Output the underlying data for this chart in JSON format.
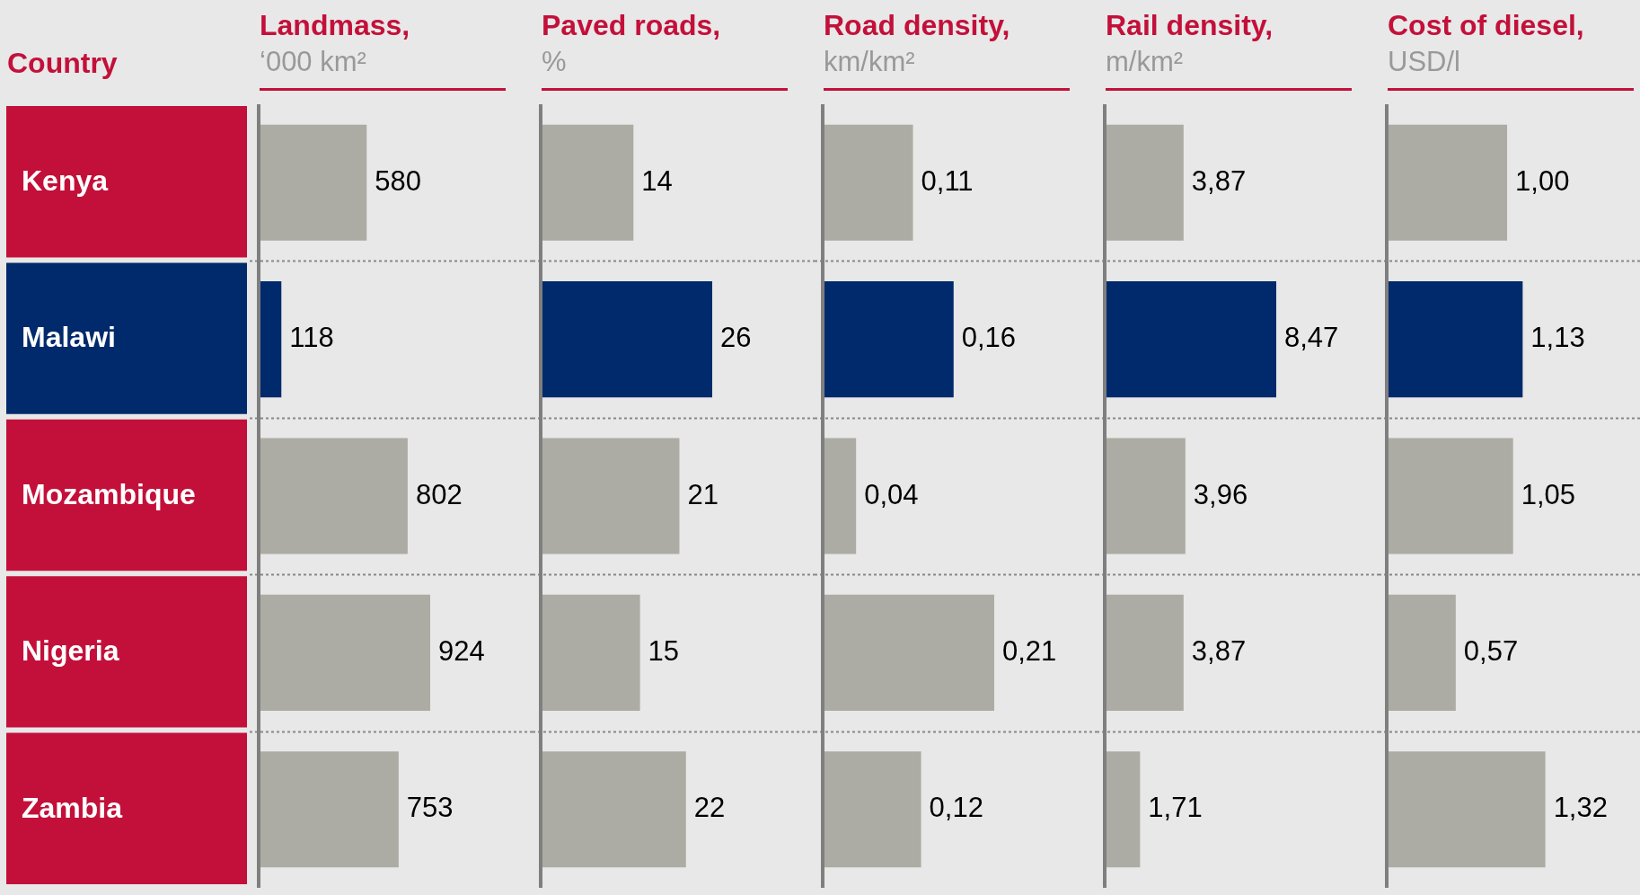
{
  "chart_data": [
    {
      "type": "bar",
      "orientation": "horizontal",
      "title": "Landmass,",
      "subtitle": "‘000 km²",
      "ylabel": "Country",
      "tick_labels": "y",
      "categories": [
        "Kenya",
        "Malawi",
        "Mozambique",
        "Nigeria",
        "Zambia"
      ],
      "values": [
        580,
        118,
        802,
        924,
        753
      ],
      "value_labels": [
        "580",
        "118",
        "802",
        "924",
        "753"
      ],
      "colors": [
        "#acaca4",
        "#002a6c",
        "#acaca4",
        "#acaca4",
        "#acaca4"
      ]
    },
    {
      "type": "bar",
      "orientation": "horizontal",
      "title": "Paved roads,",
      "subtitle": "%",
      "tick_labels": false,
      "categories": [
        null,
        null,
        null,
        null,
        null
      ],
      "values": [
        14,
        26,
        21,
        15,
        22
      ],
      "value_labels": [
        "14",
        "26",
        "21",
        "15",
        "22"
      ],
      "colors": [
        "#acaca4",
        "#002a6c",
        "#acaca4",
        "#acaca4",
        "#acaca4"
      ]
    },
    {
      "type": "bar",
      "orientation": "horizontal",
      "title": "Road density,",
      "subtitle": "km/km²",
      "tick_labels": false,
      "categories": [
        null,
        null,
        null,
        null,
        null
      ],
      "values": [
        0.11,
        0.16,
        0.04,
        0.21,
        0.12
      ],
      "value_labels": [
        "0,11",
        "0,16",
        "0,04",
        "0,21",
        "0,12"
      ],
      "colors": [
        "#acaca4",
        "#002a6c",
        "#acaca4",
        "#acaca4",
        "#acaca4"
      ]
    },
    {
      "type": "bar",
      "orientation": "horizontal",
      "title": "Rail density,",
      "subtitle": "m/km²",
      "tick_labels": false,
      "categories": [
        null,
        null,
        null,
        null,
        null
      ],
      "values": [
        3.87,
        8.47,
        3.96,
        3.87,
        1.71
      ],
      "value_labels": [
        "3,87",
        "8,47",
        "3,96",
        "3,87",
        "1,71"
      ],
      "colors": [
        "#acaca4",
        "#002a6c",
        "#acaca4",
        "#acaca4",
        "#acaca4"
      ]
    },
    {
      "type": "bar",
      "orientation": "horizontal",
      "title": "Cost of diesel,",
      "subtitle": "USD/l",
      "tick_labels": false,
      "categories": [
        null,
        null,
        null,
        null,
        null
      ],
      "values": [
        1.0,
        1.13,
        1.05,
        0.57,
        1.32
      ],
      "value_labels": [
        "1,00",
        "1,13",
        "1,05",
        "0,57",
        "1,32"
      ],
      "colors": [
        "#acaca4",
        "#002a6c",
        "#acaca4",
        "#acaca4",
        "#acaca4"
      ]
    }
  ]
}
